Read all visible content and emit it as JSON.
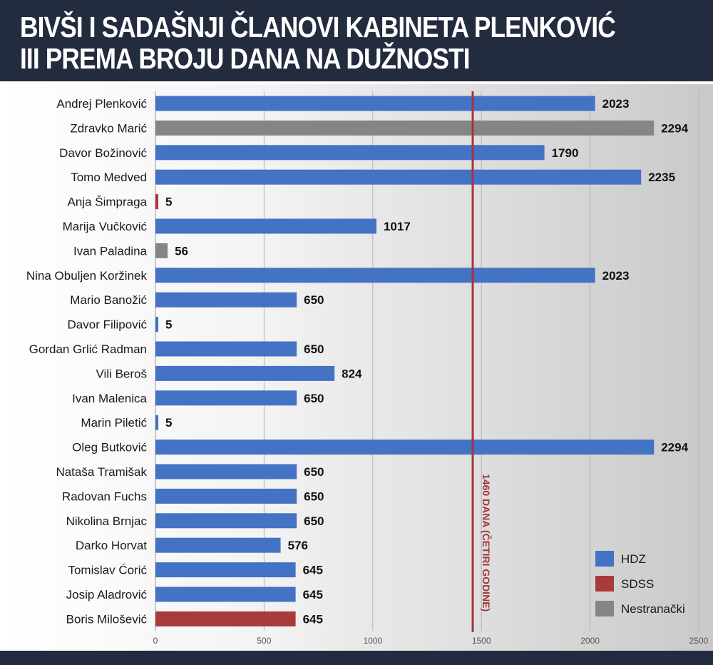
{
  "header": {
    "title_line1": "BIVŠI I SADAŠNJI ČLANOVI KABINETA PLENKOVIĆ",
    "title_line2": "III PREMA BROJU DANA NA DUŽNOSTI"
  },
  "colors": {
    "HDZ": "#4472c4",
    "SDSS": "#a93a3b",
    "Nestranački": "#858585",
    "reference_line": "#a0363a"
  },
  "chart_data": {
    "type": "bar",
    "orientation": "horizontal",
    "categories": [
      "Andrej Plenković",
      "Zdravko Marić",
      "Davor Božinović",
      "Tomo Medved",
      "Anja Šimpraga",
      "Marija Vučković",
      "Ivan Paladina",
      "Nina Obuljen Koržinek",
      "Mario Banožić",
      "Davor Filipović",
      "Gordan Grlić Radman",
      "Vili Beroš",
      "Ivan Malenica",
      "Marin Piletić",
      "Oleg Butković",
      "Nataša Tramišak",
      "Radovan Fuchs",
      "Nikolina Brnjac",
      "Darko Horvat",
      "Tomislav Ćorić",
      "Josip Aladrović",
      "Boris Milošević"
    ],
    "values": [
      2023,
      2294,
      1790,
      2235,
      5,
      1017,
      56,
      2023,
      650,
      5,
      650,
      824,
      650,
      5,
      2294,
      650,
      650,
      650,
      576,
      645,
      645,
      645
    ],
    "party": [
      "HDZ",
      "Nestranački",
      "HDZ",
      "HDZ",
      "SDSS",
      "HDZ",
      "Nestranački",
      "HDZ",
      "HDZ",
      "HDZ",
      "HDZ",
      "HDZ",
      "HDZ",
      "HDZ",
      "HDZ",
      "HDZ",
      "HDZ",
      "HDZ",
      "HDZ",
      "HDZ",
      "HDZ",
      "SDSS"
    ],
    "legend": [
      "HDZ",
      "SDSS",
      "Nestranački"
    ],
    "legend_position": "bottom-right",
    "xlim": [
      0,
      2500
    ],
    "xticks": [
      0,
      500,
      1000,
      1500,
      2000,
      2500
    ],
    "grid": true,
    "reference_line": {
      "value": 1460,
      "label": "1460 DANA (ČETIRI GODINE)"
    }
  }
}
